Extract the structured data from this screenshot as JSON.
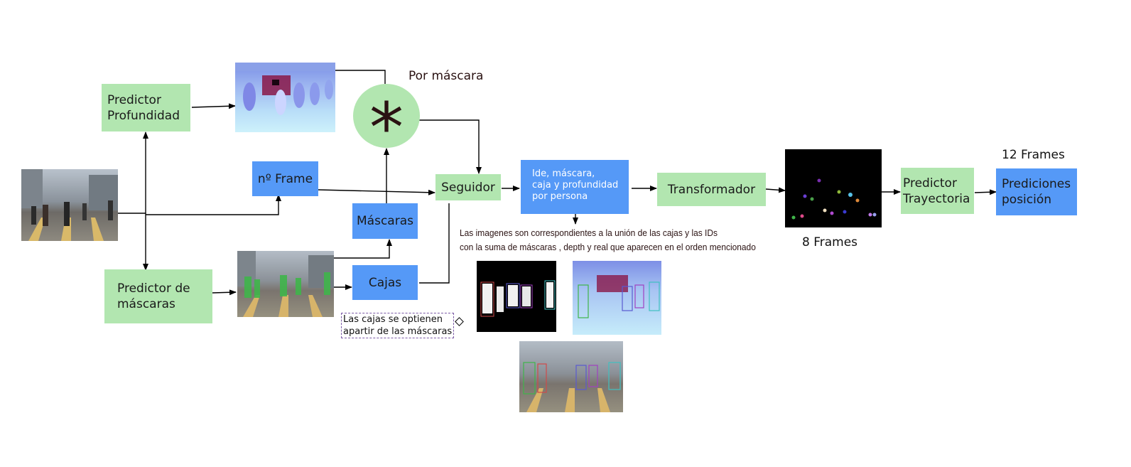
{
  "nodes": {
    "depth_predictor": "Predictor\nProfundidad",
    "mask_predictor": "Predictor de\nmáscaras",
    "frame_number": "nº Frame",
    "masks": "Máscaras",
    "boxes": "Cajas",
    "tracker": "Seguidor",
    "per_person": "Ide, máscara,\ncaja y profundidad\npor persona",
    "transformer": "Transformador",
    "trajectory_predictor": "Predictor\nTrayectoria",
    "position_predictions": "Prediciones\nposición"
  },
  "operator_symbol": "*",
  "labels": {
    "por_mascara": "Por máscara",
    "eight_frames": "8 Frames",
    "twelve_frames": "12 Frames",
    "boxes_note": "Las cajas se optienen\napartir de las máscaras",
    "union_note": "Las imagenes son correspondientes a la unión de las cajas y las IDs\ncon la suma de máscaras , depth y real  que aparecen en el orden mencionado"
  },
  "colors": {
    "green_box": "#b2e6b0",
    "blue_box": "#5599f7",
    "arrow": "#000000"
  },
  "images": {
    "input_frame": "street-scene-photo",
    "depth_map": "depth-map-image",
    "segmentation": "segmentation-mask-image",
    "trajectories": "trajectory-points-image",
    "result_masks": "masks-with-boxes-image",
    "result_depth": "depth-with-boxes-image",
    "result_real": "real-with-boxes-image"
  }
}
